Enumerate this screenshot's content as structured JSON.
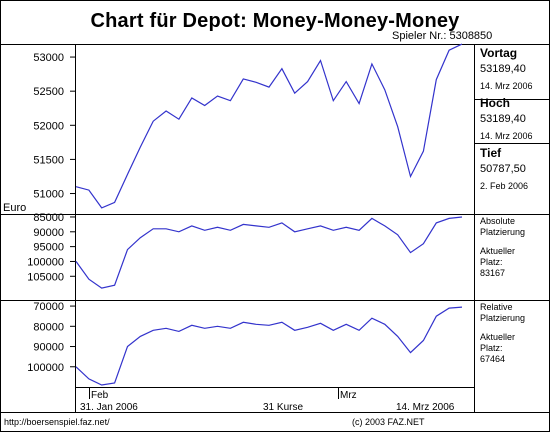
{
  "header": {
    "title": "Chart für Depot:  Money-Money-Money",
    "player": "Spieler Nr.: 5308850"
  },
  "stats": {
    "vortag": {
      "label": "Vortag",
      "value": "53189,40",
      "date": "14. Mrz 2006"
    },
    "hoch": {
      "label": "Hoch",
      "value": "53189,40",
      "date": "14. Mrz 2006"
    },
    "tief": {
      "label": "Tief",
      "value": "50787,50",
      "date": "2. Feb 2006"
    }
  },
  "rank_abs": {
    "label1": "Absolute",
    "label2": "Platzierung",
    "cur1": "Aktueller",
    "cur2": "Platz:",
    "value": "83167"
  },
  "rank_rel": {
    "label1": "Relative",
    "label2": "Platzierung",
    "cur1": "Aktueller",
    "cur2": "Platz:",
    "value": "67464"
  },
  "axis": {
    "month_labels": [
      "Feb",
      "Mrz"
    ],
    "start_date": "31. Jan 2006",
    "count": "31 Kurse",
    "end_date": "14. Mrz 2006"
  },
  "footer": {
    "url": "http://boersenspiel.faz.net/",
    "copyright": "(c) 2003 FAZ.NET"
  },
  "colors": {
    "line": "#3333cc",
    "axis": "#000000"
  },
  "chart_data": [
    {
      "type": "line",
      "ylabel": "Euro",
      "ylim": [
        50700,
        53250
      ],
      "yticks": [
        51000,
        51500,
        52000,
        52500,
        53000
      ],
      "ytick_labels": [
        "51000",
        "51500",
        "52000",
        "52500",
        "53000"
      ],
      "series": [
        {
          "values": [
            51100,
            51050,
            50790,
            50870,
            51280,
            51680,
            52060,
            52210,
            52090,
            52400,
            52290,
            52430,
            52360,
            52680,
            52630,
            52560,
            52830,
            52470,
            52640,
            52950,
            52360,
            52640,
            52320,
            52900,
            52520,
            51980,
            51250,
            51620,
            52670,
            53100,
            53190
          ]
        }
      ]
    },
    {
      "type": "line",
      "ylim": [
        113000,
        84000
      ],
      "yticks": [
        85000,
        90000,
        95000,
        100000,
        105000
      ],
      "ytick_labels": [
        "85000",
        "90000",
        "95000",
        "100000",
        "105000"
      ],
      "series": [
        {
          "values": [
            100000,
            106000,
            109000,
            108000,
            96000,
            92000,
            89000,
            89000,
            90000,
            88000,
            89500,
            88500,
            89500,
            87500,
            88000,
            88500,
            87000,
            90000,
            89000,
            88000,
            89500,
            88500,
            89500,
            85500,
            88000,
            91000,
            97000,
            94000,
            87000,
            85500,
            85000
          ]
        }
      ]
    },
    {
      "type": "line",
      "ylim": [
        110000,
        67000
      ],
      "yticks": [
        70000,
        80000,
        90000,
        100000
      ],
      "ytick_labels": [
        "70000",
        "80000",
        "90000",
        "100000"
      ],
      "series": [
        {
          "values": [
            100000,
            106000,
            109000,
            108000,
            90000,
            85000,
            82000,
            81000,
            82500,
            79500,
            81000,
            80000,
            81000,
            78000,
            79000,
            79500,
            78000,
            82000,
            80500,
            78500,
            82000,
            79000,
            82000,
            76000,
            79000,
            85000,
            93000,
            87000,
            75000,
            71000,
            70500
          ]
        }
      ]
    }
  ]
}
